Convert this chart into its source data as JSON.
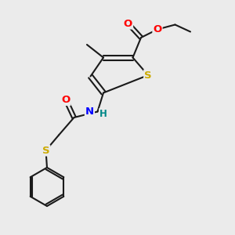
{
  "bg_color": "#ebebeb",
  "bond_color": "#1a1a1a",
  "bond_width": 1.5,
  "atom_colors": {
    "O": "#ff0000",
    "S": "#ccaa00",
    "N": "#0000ff",
    "H": "#008888",
    "C": "#1a1a1a"
  },
  "font_size_atom": 9.5,
  "font_size_small": 8.5
}
